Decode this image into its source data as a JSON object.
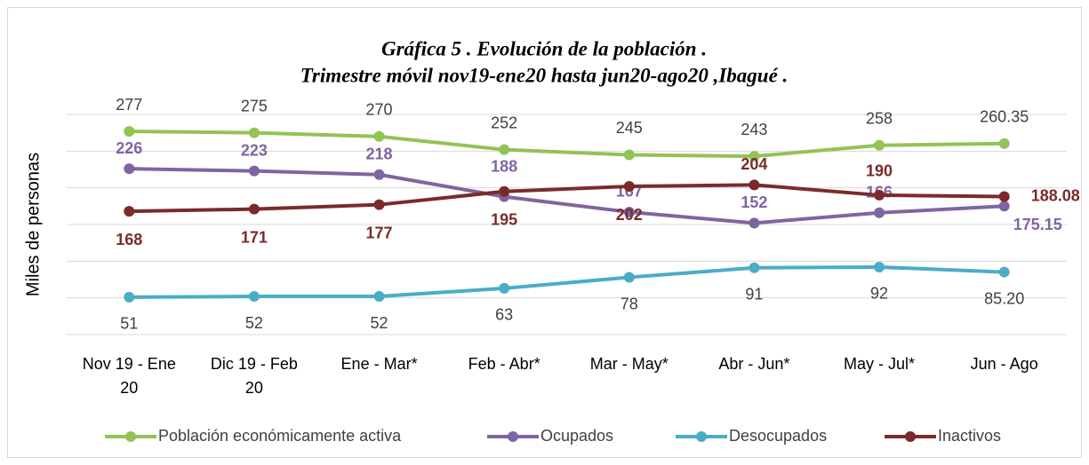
{
  "chart_data": {
    "type": "line",
    "title": "Gráfica 5 . Evolución de la población .",
    "subtitle": "Trimestre móvil  nov19-ene20 hasta jun20-ago20 ,Ibagué .",
    "ylabel": "Miles de personas",
    "categories": [
      "Nov 19 - Ene 20",
      "Dic 19 - Feb 20",
      "Ene - Mar*",
      "Feb - Abr*",
      "Mar - May*",
      "Abr - Jun*",
      "May - Jul*",
      "Jun - Ago"
    ],
    "series": [
      {
        "name": "Población económicamente activa",
        "color": "#92c353",
        "values": [
          277,
          275,
          270,
          252,
          245,
          243,
          258,
          260.35
        ]
      },
      {
        "name": "Ocupados",
        "color": "#8064a2",
        "values": [
          226,
          223,
          218,
          188,
          167,
          152,
          166,
          175.15
        ]
      },
      {
        "name": "Desocupados",
        "color": "#4bacc6",
        "values": [
          51,
          52,
          52,
          63,
          78,
          91,
          92,
          85.2
        ],
        "value_labels": [
          "51",
          "52",
          "52",
          "63",
          "78",
          "91",
          "92",
          "85.20"
        ]
      },
      {
        "name": "Inactivos",
        "color": "#7b2a2a",
        "values": [
          168,
          171,
          177,
          195,
          202,
          204,
          190,
          188.08
        ]
      }
    ],
    "ylim": [
      0,
      300
    ],
    "yticks": [
      0,
      50,
      100,
      150,
      200,
      250,
      300
    ],
    "grid": true,
    "legend": "bottom"
  }
}
